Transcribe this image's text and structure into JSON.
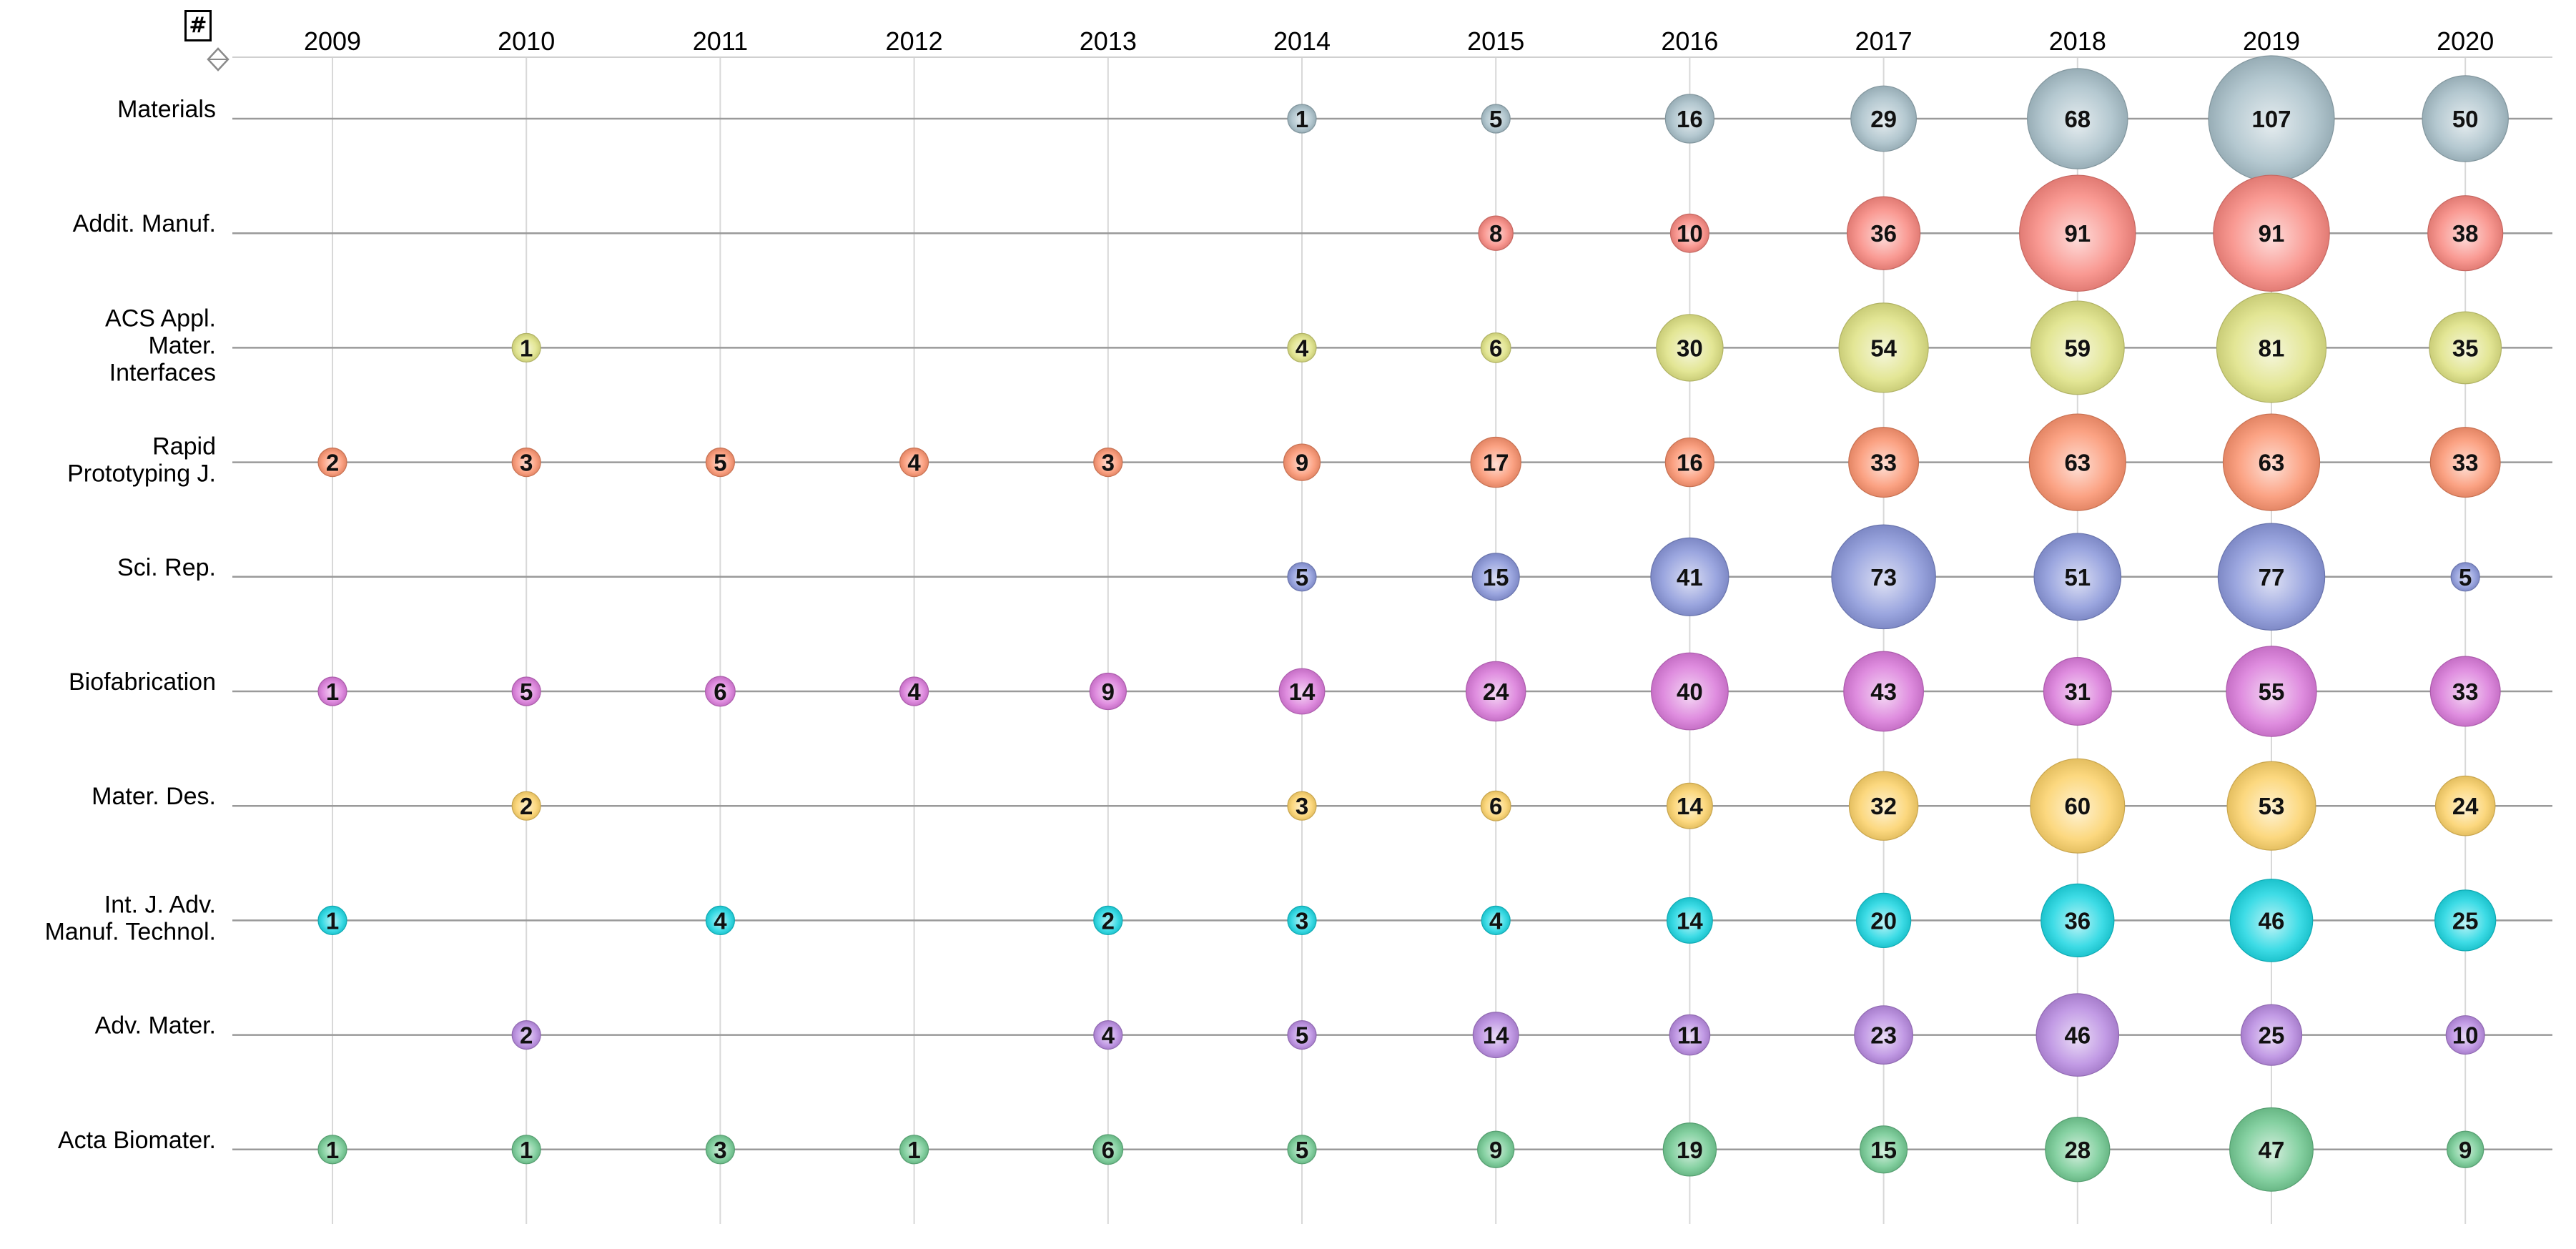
{
  "controls": {
    "size_measure_symbol": "#",
    "sort_icon": "sort-diamond-icon"
  },
  "chart_data": {
    "type": "bubble-matrix",
    "x": [
      "2009",
      "2010",
      "2011",
      "2012",
      "2013",
      "2014",
      "2015",
      "2016",
      "2017",
      "2018",
      "2019",
      "2020"
    ],
    "rows": [
      {
        "label": [
          "Materials"
        ],
        "color": "#a3bcc6",
        "values": [
          null,
          null,
          null,
          null,
          null,
          1,
          5,
          16,
          29,
          68,
          107,
          50
        ]
      },
      {
        "label": [
          "Addit. Manuf."
        ],
        "color": "#f8827a",
        "values": [
          null,
          null,
          null,
          null,
          null,
          null,
          8,
          10,
          36,
          91,
          91,
          38
        ]
      },
      {
        "label": [
          "ACS Appl.",
          "Mater.",
          "Interfaces"
        ],
        "color": "#dde07e",
        "values": [
          null,
          1,
          null,
          null,
          null,
          4,
          6,
          30,
          54,
          59,
          81,
          35
        ]
      },
      {
        "label": [
          "Rapid",
          "Prototyping J."
        ],
        "color": "#fa8e68",
        "values": [
          2,
          3,
          5,
          4,
          3,
          9,
          17,
          16,
          33,
          63,
          63,
          33
        ]
      },
      {
        "label": [
          "Sci. Rep."
        ],
        "color": "#8592d8",
        "values": [
          null,
          null,
          null,
          null,
          null,
          5,
          15,
          41,
          73,
          51,
          77,
          5
        ]
      },
      {
        "label": [
          "Biofabrication"
        ],
        "color": "#d874d8",
        "values": [
          1,
          5,
          6,
          4,
          9,
          14,
          24,
          40,
          43,
          31,
          55,
          33
        ]
      },
      {
        "label": [
          "Mater. Des."
        ],
        "color": "#fbd063",
        "values": [
          null,
          2,
          null,
          null,
          null,
          3,
          6,
          14,
          32,
          60,
          53,
          24
        ]
      },
      {
        "label": [
          "Int. J. Adv.",
          "Manuf. Technol."
        ],
        "color": "#14d4e0",
        "values": [
          1,
          null,
          4,
          null,
          2,
          3,
          4,
          14,
          20,
          36,
          46,
          25
        ]
      },
      {
        "label": [
          "Adv. Mater."
        ],
        "color": "#b585df",
        "values": [
          null,
          2,
          null,
          null,
          4,
          5,
          14,
          11,
          23,
          46,
          25,
          10
        ]
      },
      {
        "label": [
          "Acta Biomater."
        ],
        "color": "#6cc78d",
        "values": [
          1,
          1,
          3,
          1,
          6,
          5,
          9,
          19,
          15,
          28,
          47,
          9
        ]
      }
    ]
  }
}
